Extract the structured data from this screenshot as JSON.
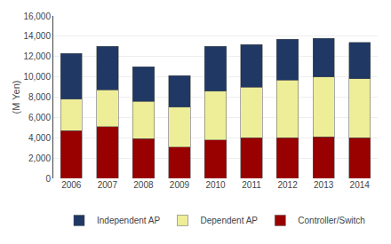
{
  "chart_data": {
    "type": "bar",
    "stacked": true,
    "categories": [
      "2006",
      "2007",
      "2008",
      "2009",
      "2010",
      "2011",
      "2012",
      "2013",
      "2014"
    ],
    "series": [
      {
        "name": "Controller/Switch",
        "color": "#990000",
        "values": [
          4700,
          5100,
          3900,
          3100,
          3800,
          4000,
          4000,
          4100,
          4000
        ]
      },
      {
        "name": "Dependent AP",
        "color": "#EEEE99",
        "values": [
          3100,
          3600,
          3700,
          3900,
          4800,
          5000,
          5700,
          5900,
          5800
        ]
      },
      {
        "name": "Independent AP",
        "color": "#1F3864",
        "values": [
          4500,
          4300,
          3400,
          3100,
          4400,
          4200,
          4000,
          3800,
          3600
        ]
      }
    ],
    "ylabel": "(M Yen)",
    "ylim": [
      0,
      16000
    ],
    "yticks": [
      0,
      {
        "value": 2000,
        "label": "2,000"
      },
      {
        "value": 4000,
        "label": "4,000"
      },
      {
        "value": 6000,
        "label": "6,000"
      },
      {
        "value": 8000,
        "label": "8,000"
      },
      {
        "value": 10000,
        "label": "10,000"
      },
      {
        "value": 12000,
        "label": "12,000"
      },
      {
        "value": 14000,
        "label": "14,000"
      },
      {
        "value": 16000,
        "label": "16,000"
      }
    ],
    "grid": true,
    "legend": "bottom"
  }
}
